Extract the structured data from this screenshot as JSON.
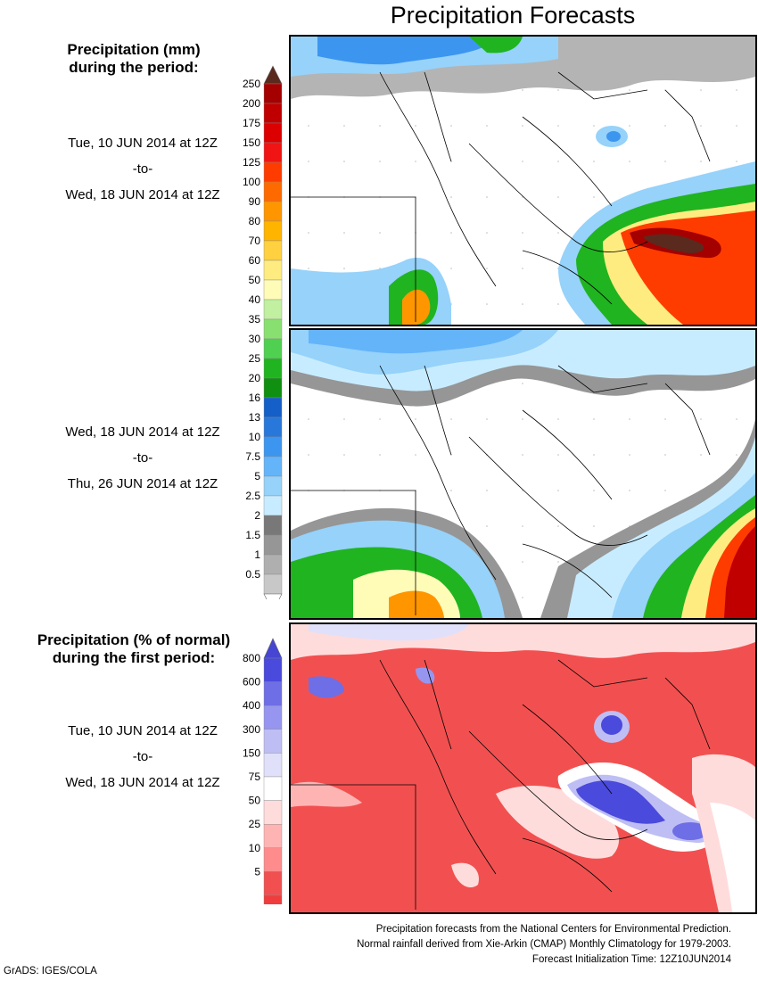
{
  "title": "Precipitation Forecasts",
  "amount_legend": {
    "title_line1": "Precipitation (mm)",
    "title_line2": "during the period:",
    "levels": [
      "250",
      "200",
      "175",
      "150",
      "125",
      "100",
      "90",
      "80",
      "70",
      "60",
      "50",
      "40",
      "35",
      "30",
      "25",
      "20",
      "16",
      "13",
      "10",
      "7.5",
      "5",
      "2.5",
      "2",
      "1.5",
      "1",
      "0.5"
    ],
    "colors": [
      "#a40000",
      "#c00000",
      "#dc0000",
      "#f01414",
      "#ff3c00",
      "#ff6a00",
      "#ff9600",
      "#ffb400",
      "#ffd040",
      "#ffec80",
      "#fffcb8",
      "#c0f0a0",
      "#88e070",
      "#50d050",
      "#20b420",
      "#109010",
      "#1460c8",
      "#2878dc",
      "#3c96f0",
      "#64b4fa",
      "#96d2fa",
      "#c8ecff",
      "#787878",
      "#969696",
      "#afafaf",
      "#c8c8c8"
    ],
    "top_arrow_color": "#5a2a1e",
    "bottom_arrow_color": "#ffffff"
  },
  "period1": {
    "start": "Tue, 10 JUN 2014 at 12Z",
    "sep": "-to-",
    "end": "Wed, 18 JUN 2014 at 12Z"
  },
  "period2": {
    "start": "Wed, 18 JUN 2014 at 12Z",
    "sep": "-to-",
    "end": "Thu, 26 JUN 2014 at 12Z"
  },
  "percent_legend": {
    "title_line1": "Precipitation (% of normal)",
    "title_line2": "during the first period:",
    "levels": [
      "800",
      "600",
      "400",
      "300",
      "150",
      "75",
      "50",
      "25",
      "10",
      "5"
    ],
    "colors": [
      "#4a4adc",
      "#6e6ee6",
      "#9696f0",
      "#bebef5",
      "#e0e0fa",
      "#ffffff",
      "#ffdcdc",
      "#ffb4b4",
      "#ff8c8c",
      "#f25050",
      "#f03c3c"
    ],
    "top_arrow_color": "#4646d2",
    "bottom_arrow_color": "#ee3a3a"
  },
  "period3": {
    "start": "Tue, 10 JUN 2014 at 12Z",
    "sep": "-to-",
    "end": "Wed, 18 JUN 2014 at 12Z"
  },
  "footer": {
    "line1": "Precipitation forecasts from the National Centers for Environmental Prediction.",
    "line2": "Normal rainfall derived from Xie-Arkin (CMAP) Monthly Climatology for 1979-2003.",
    "line3": "Forecast Initialization Time: 12Z10JUN2014"
  },
  "credit": "GrADS: IGES/COLA"
}
